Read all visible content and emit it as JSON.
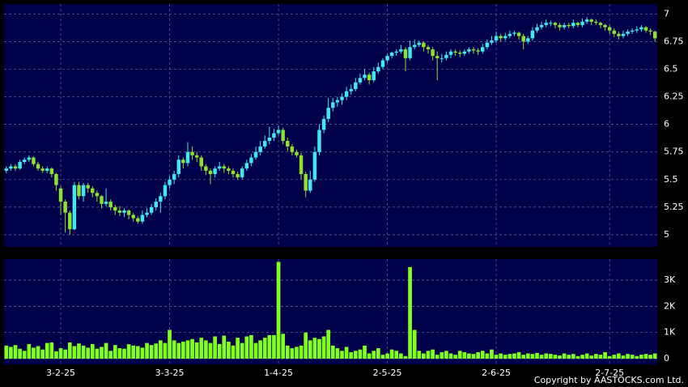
{
  "chart_data": {
    "type": "candlestick",
    "up_color": "#40e8f0",
    "down_color": "#90e030",
    "pane_color": "#00004a",
    "xlim": [
      -0.5,
      143.5
    ],
    "xticks": [
      {
        "value": 12,
        "label": "3-2-25"
      },
      {
        "value": 36,
        "label": "3-3-25"
      },
      {
        "value": 60,
        "label": "1-4-25"
      },
      {
        "value": 84,
        "label": "2-5-25"
      },
      {
        "value": 108,
        "label": "2-6-25"
      },
      {
        "value": 133,
        "label": "2-7-25"
      }
    ],
    "ylim": [
      4.89,
      7.09
    ],
    "yticks": [
      5,
      5.25,
      5.5,
      5.75,
      6,
      6.25,
      6.5,
      6.75,
      7
    ],
    "grid": true,
    "ohlc": [
      [
        5.58,
        5.62,
        5.56,
        5.6
      ],
      [
        5.6,
        5.64,
        5.58,
        5.62
      ],
      [
        5.62,
        5.64,
        5.58,
        5.6
      ],
      [
        5.6,
        5.68,
        5.59,
        5.66
      ],
      [
        5.66,
        5.7,
        5.64,
        5.68
      ],
      [
        5.68,
        5.72,
        5.66,
        5.7
      ],
      [
        5.7,
        5.71,
        5.62,
        5.64
      ],
      [
        5.64,
        5.66,
        5.58,
        5.6
      ],
      [
        5.6,
        5.62,
        5.56,
        5.58
      ],
      [
        5.58,
        5.62,
        5.56,
        5.6
      ],
      [
        5.6,
        5.61,
        5.52,
        5.55
      ],
      [
        5.55,
        5.56,
        5.4,
        5.45
      ],
      [
        5.42,
        5.44,
        5.18,
        5.3
      ],
      [
        5.3,
        5.32,
        5.02,
        5.2
      ],
      [
        5.2,
        5.22,
        5.0,
        5.05
      ],
      [
        5.05,
        5.48,
        5.04,
        5.45
      ],
      [
        5.45,
        5.48,
        5.32,
        5.35
      ],
      [
        5.35,
        5.47,
        5.3,
        5.45
      ],
      [
        5.45,
        5.47,
        5.38,
        5.42
      ],
      [
        5.42,
        5.44,
        5.34,
        5.38
      ],
      [
        5.38,
        5.4,
        5.3,
        5.35
      ],
      [
        5.35,
        5.36,
        5.24,
        5.28
      ],
      [
        5.28,
        5.42,
        5.26,
        5.3
      ],
      [
        5.3,
        5.32,
        5.22,
        5.25
      ],
      [
        5.25,
        5.27,
        5.18,
        5.22
      ],
      [
        5.22,
        5.26,
        5.17,
        5.2
      ],
      [
        5.2,
        5.24,
        5.16,
        5.22
      ],
      [
        5.22,
        5.23,
        5.14,
        5.18
      ],
      [
        5.18,
        5.2,
        5.12,
        5.15
      ],
      [
        5.15,
        5.17,
        5.1,
        5.12
      ],
      [
        5.12,
        5.22,
        5.1,
        5.18
      ],
      [
        5.18,
        5.24,
        5.16,
        5.2
      ],
      [
        5.2,
        5.28,
        5.18,
        5.25
      ],
      [
        5.25,
        5.33,
        5.22,
        5.3
      ],
      [
        5.3,
        5.38,
        5.2,
        5.35
      ],
      [
        5.35,
        5.48,
        5.32,
        5.45
      ],
      [
        5.45,
        5.53,
        5.42,
        5.5
      ],
      [
        5.5,
        5.58,
        5.46,
        5.55
      ],
      [
        5.55,
        5.72,
        5.52,
        5.68
      ],
      [
        5.68,
        5.7,
        5.6,
        5.65
      ],
      [
        5.65,
        5.84,
        5.62,
        5.75
      ],
      [
        5.75,
        5.8,
        5.68,
        5.72
      ],
      [
        5.72,
        5.75,
        5.66,
        5.7
      ],
      [
        5.7,
        5.72,
        5.58,
        5.62
      ],
      [
        5.62,
        5.64,
        5.54,
        5.58
      ],
      [
        5.58,
        5.6,
        5.46,
        5.55
      ],
      [
        5.55,
        5.62,
        5.52,
        5.6
      ],
      [
        5.6,
        5.66,
        5.58,
        5.62
      ],
      [
        5.62,
        5.64,
        5.56,
        5.6
      ],
      [
        5.6,
        5.62,
        5.55,
        5.58
      ],
      [
        5.58,
        5.6,
        5.52,
        5.55
      ],
      [
        5.55,
        5.57,
        5.5,
        5.52
      ],
      [
        5.52,
        5.62,
        5.5,
        5.6
      ],
      [
        5.6,
        5.68,
        5.58,
        5.65
      ],
      [
        5.65,
        5.73,
        5.62,
        5.7
      ],
      [
        5.7,
        5.8,
        5.68,
        5.75
      ],
      [
        5.75,
        5.85,
        5.72,
        5.8
      ],
      [
        5.8,
        5.9,
        5.78,
        5.85
      ],
      [
        5.85,
        5.98,
        5.82,
        5.88
      ],
      [
        5.88,
        5.96,
        5.85,
        5.92
      ],
      [
        5.92,
        5.99,
        5.9,
        5.95
      ],
      [
        5.95,
        5.97,
        5.82,
        5.85
      ],
      [
        5.85,
        5.88,
        5.76,
        5.8
      ],
      [
        5.8,
        5.82,
        5.72,
        5.75
      ],
      [
        5.75,
        5.77,
        5.7,
        5.72
      ],
      [
        5.72,
        5.74,
        5.5,
        5.55
      ],
      [
        5.55,
        5.57,
        5.34,
        5.4
      ],
      [
        5.4,
        5.58,
        5.38,
        5.5
      ],
      [
        5.5,
        5.8,
        5.48,
        5.75
      ],
      [
        5.75,
        6.0,
        5.72,
        5.95
      ],
      [
        5.95,
        6.08,
        5.92,
        6.05
      ],
      [
        6.05,
        6.24,
        6.02,
        6.15
      ],
      [
        6.15,
        6.24,
        6.12,
        6.2
      ],
      [
        6.2,
        6.25,
        6.16,
        6.22
      ],
      [
        6.22,
        6.28,
        6.18,
        6.25
      ],
      [
        6.25,
        6.34,
        6.22,
        6.3
      ],
      [
        6.3,
        6.36,
        6.27,
        6.32
      ],
      [
        6.32,
        6.42,
        6.3,
        6.38
      ],
      [
        6.38,
        6.46,
        6.36,
        6.42
      ],
      [
        6.42,
        6.5,
        6.4,
        6.45
      ],
      [
        6.45,
        6.47,
        6.36,
        6.4
      ],
      [
        6.4,
        6.52,
        6.38,
        6.48
      ],
      [
        6.48,
        6.56,
        6.46,
        6.52
      ],
      [
        6.52,
        6.6,
        6.5,
        6.58
      ],
      [
        6.58,
        6.64,
        6.56,
        6.62
      ],
      [
        6.62,
        6.66,
        6.6,
        6.65
      ],
      [
        6.65,
        6.68,
        6.62,
        6.66
      ],
      [
        6.66,
        6.72,
        6.64,
        6.68
      ],
      [
        6.68,
        6.7,
        6.48,
        6.6
      ],
      [
        6.6,
        6.76,
        6.58,
        6.7
      ],
      [
        6.7,
        6.77,
        6.68,
        6.72
      ],
      [
        6.72,
        6.76,
        6.7,
        6.74
      ],
      [
        6.74,
        6.75,
        6.66,
        6.7
      ],
      [
        6.7,
        6.72,
        6.64,
        6.68
      ],
      [
        6.68,
        6.7,
        6.58,
        6.62
      ],
      [
        6.62,
        6.66,
        6.4,
        6.6
      ],
      [
        6.6,
        6.64,
        6.56,
        6.6
      ],
      [
        6.6,
        6.66,
        6.58,
        6.63
      ],
      [
        6.63,
        6.68,
        6.6,
        6.66
      ],
      [
        6.66,
        6.68,
        6.62,
        6.65
      ],
      [
        6.65,
        6.67,
        6.61,
        6.64
      ],
      [
        6.64,
        6.68,
        6.62,
        6.66
      ],
      [
        6.66,
        6.7,
        6.64,
        6.68
      ],
      [
        6.68,
        6.7,
        6.64,
        6.67
      ],
      [
        6.67,
        6.69,
        6.63,
        6.66
      ],
      [
        6.66,
        6.73,
        6.64,
        6.7
      ],
      [
        6.7,
        6.77,
        6.68,
        6.74
      ],
      [
        6.74,
        6.8,
        6.72,
        6.76
      ],
      [
        6.76,
        6.84,
        6.74,
        6.8
      ],
      [
        6.8,
        6.82,
        6.75,
        6.78
      ],
      [
        6.78,
        6.83,
        6.76,
        6.8
      ],
      [
        6.8,
        6.85,
        6.78,
        6.82
      ],
      [
        6.82,
        6.85,
        6.8,
        6.83
      ],
      [
        6.83,
        6.84,
        6.77,
        6.8
      ],
      [
        6.8,
        6.82,
        6.68,
        6.75
      ],
      [
        6.75,
        6.8,
        6.73,
        6.78
      ],
      [
        6.78,
        6.88,
        6.76,
        6.85
      ],
      [
        6.85,
        6.91,
        6.83,
        6.88
      ],
      [
        6.88,
        6.93,
        6.86,
        6.9
      ],
      [
        6.9,
        6.95,
        6.88,
        6.92
      ],
      [
        6.92,
        6.94,
        6.89,
        6.92
      ],
      [
        6.92,
        6.93,
        6.87,
        6.9
      ],
      [
        6.9,
        6.92,
        6.85,
        6.88
      ],
      [
        6.88,
        6.92,
        6.86,
        6.9
      ],
      [
        6.9,
        6.92,
        6.87,
        6.89
      ],
      [
        6.89,
        6.95,
        6.87,
        6.92
      ],
      [
        6.92,
        6.93,
        6.88,
        6.9
      ],
      [
        6.9,
        6.96,
        6.88,
        6.93
      ],
      [
        6.93,
        6.97,
        6.91,
        6.95
      ],
      [
        6.95,
        6.96,
        6.9,
        6.93
      ],
      [
        6.93,
        6.95,
        6.9,
        6.92
      ],
      [
        6.92,
        6.93,
        6.87,
        6.9
      ],
      [
        6.9,
        6.91,
        6.85,
        6.88
      ],
      [
        6.88,
        6.9,
        6.82,
        6.85
      ],
      [
        6.85,
        6.87,
        6.79,
        6.82
      ],
      [
        6.82,
        6.84,
        6.77,
        6.8
      ],
      [
        6.8,
        6.85,
        6.78,
        6.82
      ],
      [
        6.82,
        6.86,
        6.8,
        6.84
      ],
      [
        6.84,
        6.87,
        6.82,
        6.85
      ],
      [
        6.85,
        6.89,
        6.83,
        6.86
      ],
      [
        6.86,
        6.9,
        6.84,
        6.88
      ],
      [
        6.88,
        6.89,
        6.83,
        6.85
      ],
      [
        6.85,
        6.87,
        6.81,
        6.84
      ],
      [
        6.84,
        6.85,
        6.75,
        6.78
      ]
    ],
    "volume": {
      "color": "#80ff20",
      "ylim": [
        -216,
        3804
      ],
      "yticks": [
        0,
        {
          "value": 1000,
          "label": "1K"
        },
        {
          "value": 2000,
          "label": "2K"
        },
        {
          "value": 3000,
          "label": "3K"
        }
      ],
      "values": [
        500,
        450,
        520,
        380,
        300,
        560,
        420,
        480,
        350,
        600,
        620,
        280,
        400,
        350,
        620,
        480,
        580,
        500,
        420,
        560,
        380,
        450,
        600,
        300,
        520,
        400,
        380,
        550,
        500,
        480,
        420,
        600,
        520,
        580,
        700,
        600,
        1100,
        700,
        600,
        650,
        700,
        750,
        620,
        800,
        700,
        600,
        850,
        560,
        880,
        650,
        500,
        800,
        600,
        850,
        900,
        600,
        700,
        800,
        900,
        900,
        3700,
        950,
        500,
        400,
        450,
        500,
        1000,
        700,
        800,
        750,
        850,
        1100,
        500,
        400,
        300,
        450,
        250,
        300,
        350,
        500,
        200,
        300,
        400,
        150,
        200,
        350,
        300,
        200,
        100,
        3500,
        1100,
        300,
        200,
        300,
        350,
        150,
        250,
        300,
        200,
        150,
        300,
        250,
        200,
        180,
        250,
        300,
        200,
        350,
        150,
        200,
        150,
        180,
        200,
        250,
        150,
        200,
        180,
        220,
        150,
        200,
        180,
        150,
        120,
        200,
        150,
        180,
        100,
        150,
        200,
        120,
        180,
        150,
        250,
        100,
        150,
        200,
        120,
        180,
        150,
        100,
        150,
        180,
        150,
        200
      ]
    }
  },
  "copyright": "Copyright by AASTOCKS.com Ltd."
}
